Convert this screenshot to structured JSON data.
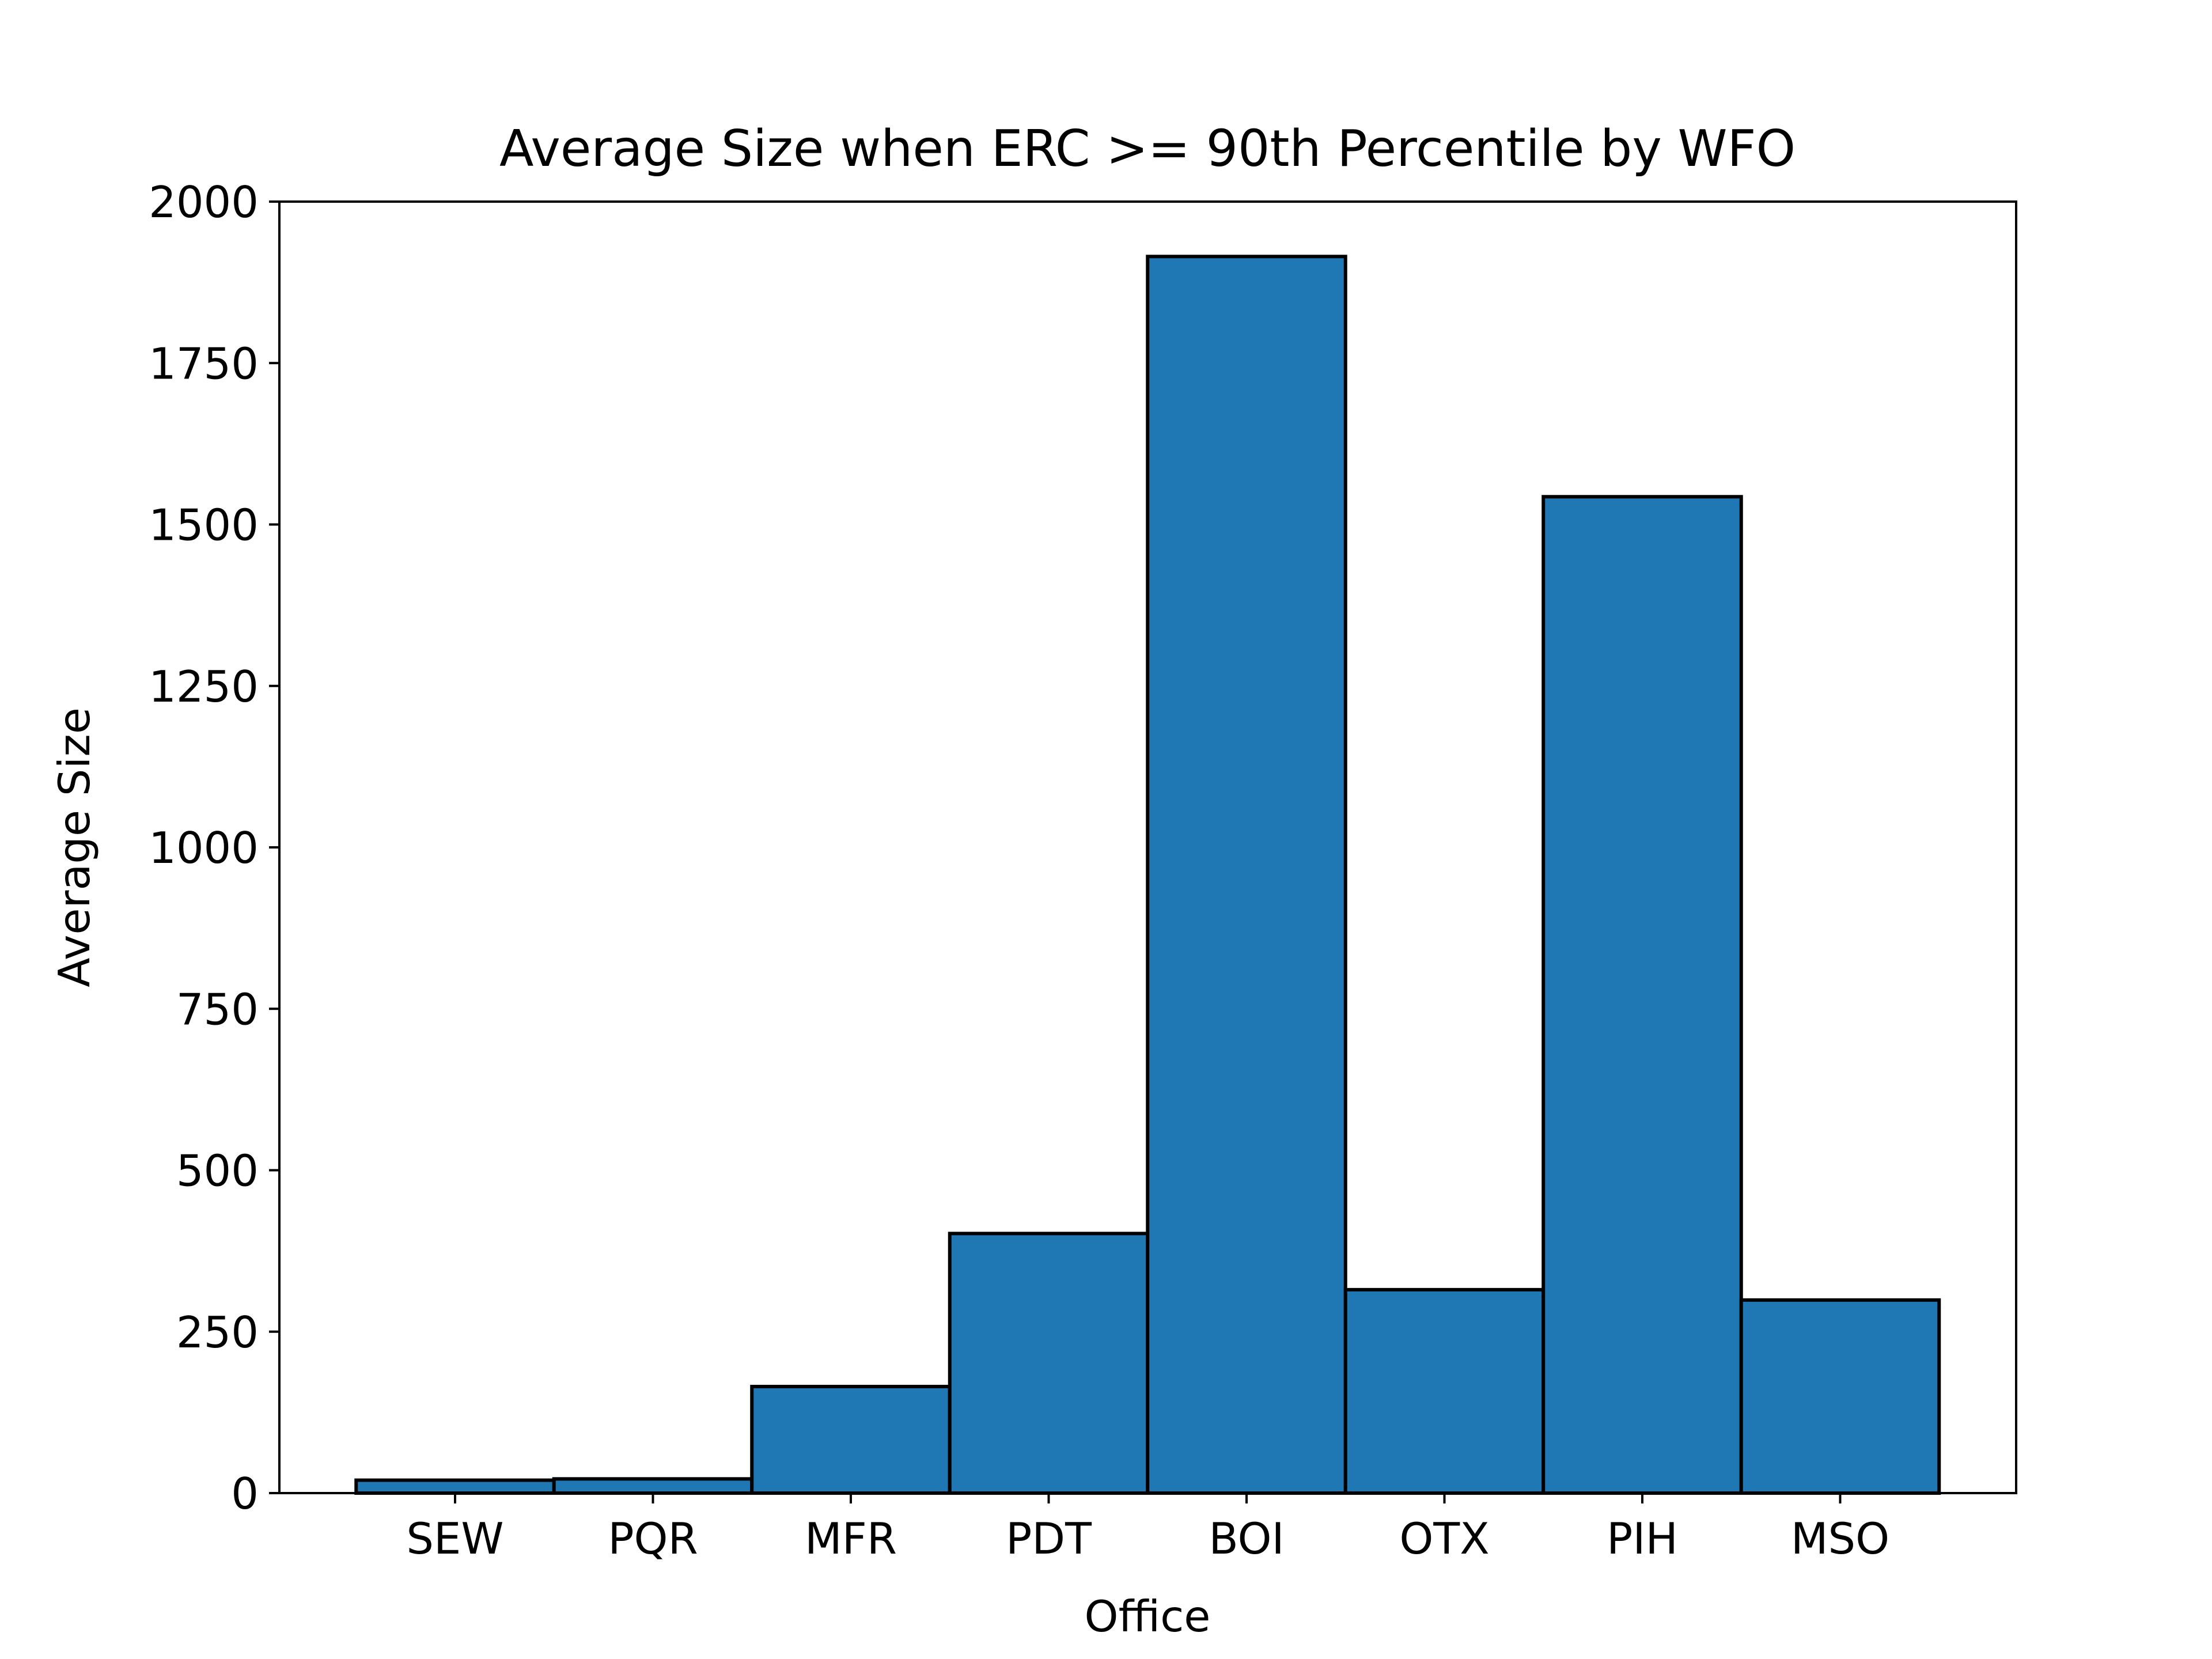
{
  "chart_data": {
    "type": "bar",
    "title": "Average Size when ERC >= 90th Percentile by WFO",
    "xlabel": "Office",
    "ylabel": "Average Size",
    "categories": [
      "SEW",
      "PQR",
      "MFR",
      "PDT",
      "BOI",
      "OTX",
      "PIH",
      "MSO"
    ],
    "values": [
      20,
      22,
      165,
      402,
      1915,
      315,
      1543,
      299
    ],
    "ylim": [
      0,
      2000
    ],
    "yticks": [
      0,
      250,
      500,
      750,
      1000,
      1250,
      1500,
      1750,
      2000
    ],
    "grid": false,
    "legend": "none",
    "colors": {
      "bar": "#1f77b4",
      "edge": "#000000"
    }
  }
}
